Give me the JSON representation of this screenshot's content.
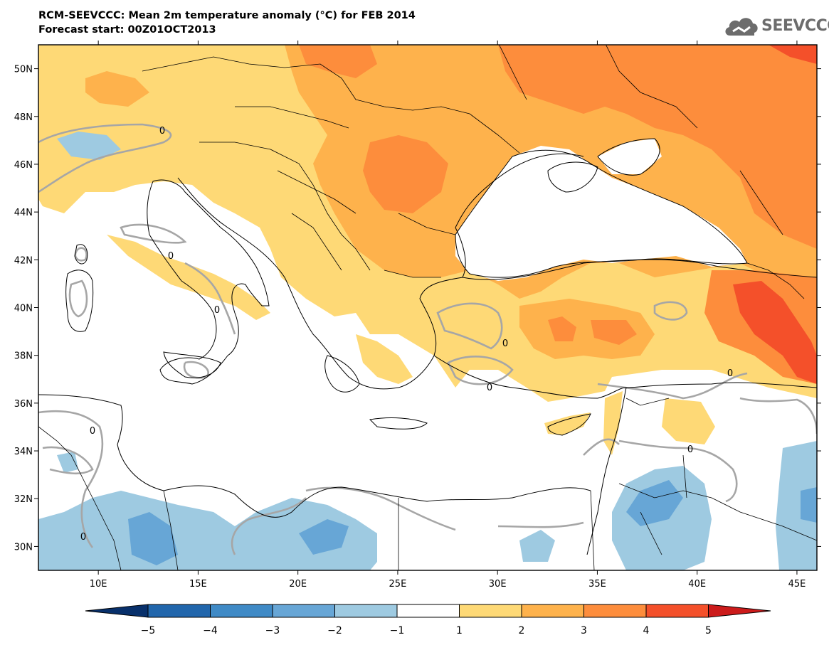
{
  "header": {
    "title": "RCM-SEEVCCC: Mean 2m temperature anomaly (°C) for FEB 2014",
    "subtitle": "Forecast start: 00Z01OCT2013",
    "logo_text": "SEEVCCC"
  },
  "map": {
    "lon_range": [
      7,
      46
    ],
    "lat_range": [
      29,
      51
    ],
    "lon_ticks": [
      {
        "value": 10,
        "label": "10E"
      },
      {
        "value": 15,
        "label": "15E"
      },
      {
        "value": 20,
        "label": "20E"
      },
      {
        "value": 25,
        "label": "25E"
      },
      {
        "value": 30,
        "label": "30E"
      },
      {
        "value": 35,
        "label": "35E"
      },
      {
        "value": 40,
        "label": "40E"
      },
      {
        "value": 45,
        "label": "45E"
      }
    ],
    "lat_ticks": [
      {
        "value": 30,
        "label": "30N"
      },
      {
        "value": 32,
        "label": "32N"
      },
      {
        "value": 34,
        "label": "34N"
      },
      {
        "value": 36,
        "label": "36N"
      },
      {
        "value": 38,
        "label": "38N"
      },
      {
        "value": 40,
        "label": "40N"
      },
      {
        "value": 42,
        "label": "42N"
      },
      {
        "value": 44,
        "label": "44N"
      },
      {
        "value": 46,
        "label": "46N"
      },
      {
        "value": 48,
        "label": "48N"
      },
      {
        "value": 50,
        "label": "50N"
      }
    ],
    "zero_contour_label": "0",
    "colors": {
      "land_outline": "#000000",
      "zero_contour": "#a6a6a6"
    }
  },
  "colorbar": {
    "bins": [
      {
        "color": "#2166ac"
      },
      {
        "color": "#3f8ac6"
      },
      {
        "color": "#67a6d6"
      },
      {
        "color": "#9ecae1"
      },
      {
        "color": "#ffffff"
      },
      {
        "color": "#fed976"
      },
      {
        "color": "#feb24c"
      },
      {
        "color": "#fd8d3c"
      },
      {
        "color": "#f4502a"
      }
    ],
    "low_end_color": "#08306b",
    "high_end_color": "#cc1b1b",
    "labels": [
      "−5",
      "−4",
      "−3",
      "−2",
      "−1",
      "1",
      "2",
      "3",
      "4",
      "5"
    ]
  }
}
